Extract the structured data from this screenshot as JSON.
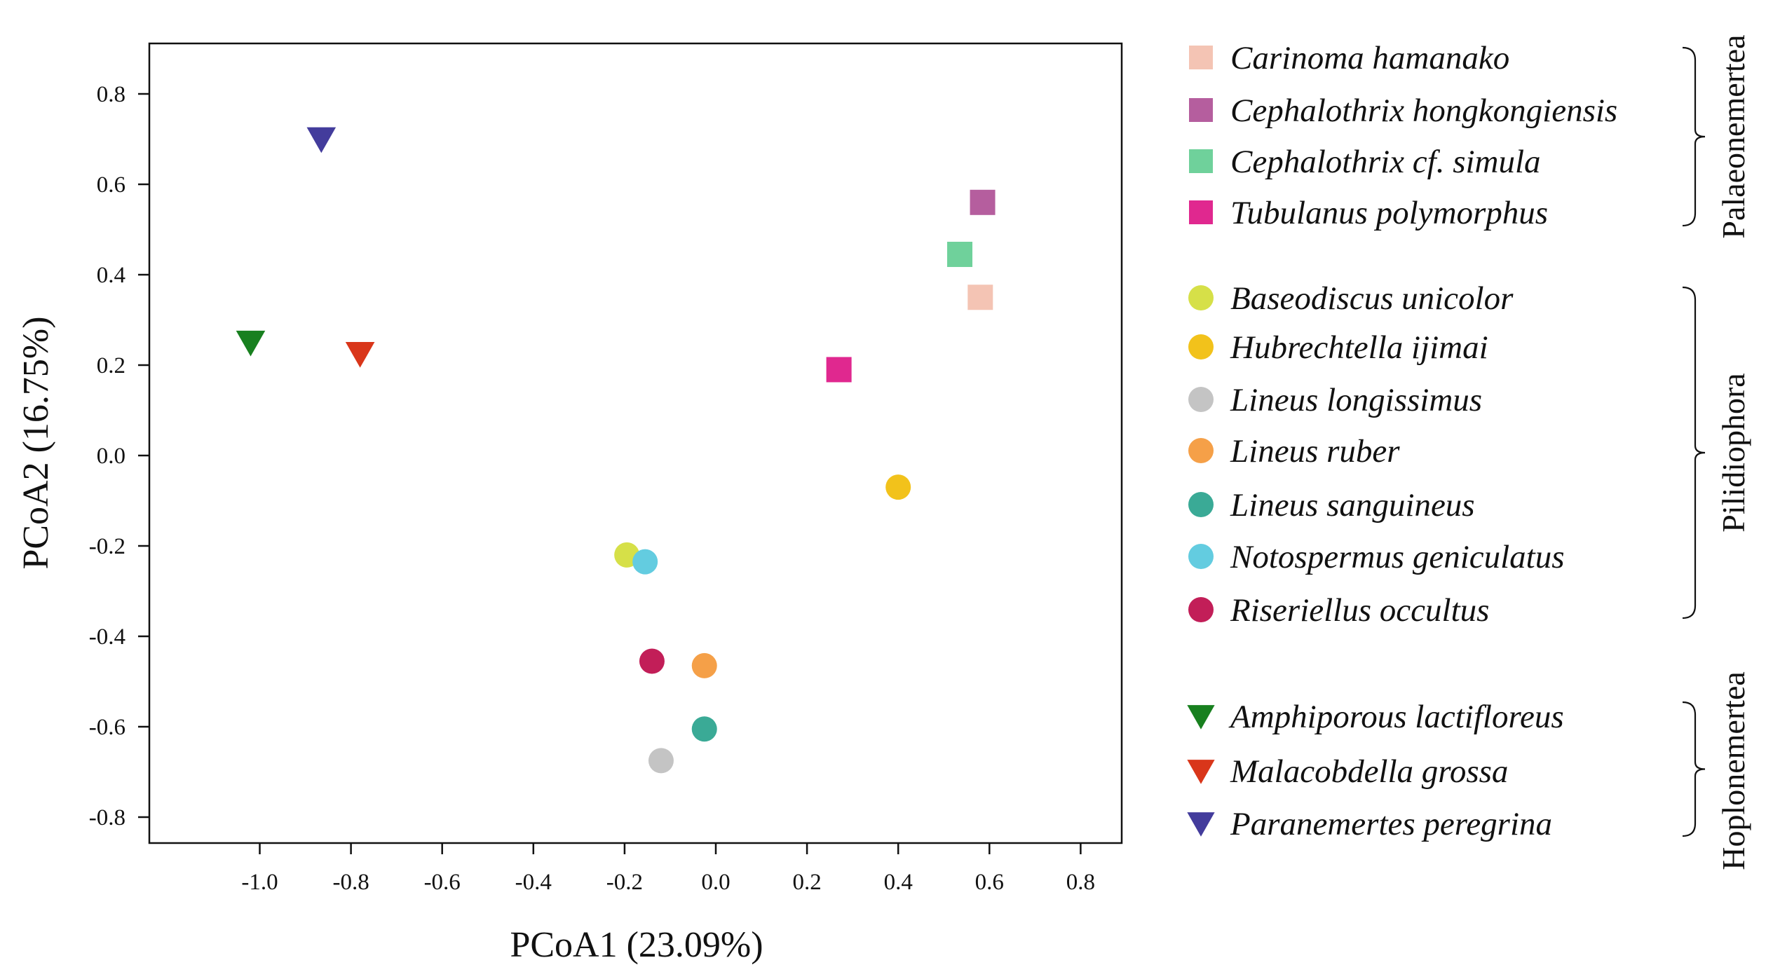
{
  "chart_data": {
    "type": "scatter",
    "title": "",
    "xlabel": "PCoA1 (23.09%)",
    "ylabel": "PCoA2 (16.75%)",
    "xlim": [
      -1.25,
      0.9
    ],
    "ylim": [
      -0.85,
      0.92
    ],
    "xticks": [
      -1.0,
      -0.8,
      -0.6,
      -0.4,
      -0.2,
      0.0,
      0.2,
      0.4,
      0.6,
      0.8
    ],
    "xtick_labels": [
      "-1.0",
      "-0.8",
      "-0.6",
      "-0.4",
      "-0.2",
      "0.0",
      "0.2",
      "0.4",
      "0.6",
      "0.8"
    ],
    "yticks": [
      0.8,
      0.6,
      0.4,
      0.2,
      0.0,
      -0.2,
      -0.4,
      -0.6,
      -0.8
    ],
    "ytick_labels": [
      "0.8",
      "0.6",
      "0.4",
      "0.2",
      "0.0",
      "-0.2",
      "-0.4",
      "-0.6",
      "-0.8"
    ],
    "grid": false,
    "legend_position": "right",
    "groups": [
      {
        "name": "Palaeonemertea",
        "marker": "square",
        "series": [
          {
            "name": "Carinoma hamanako",
            "color": "#f4c4b4",
            "x": 0.58,
            "y": 0.35
          },
          {
            "name": "Cephalothrix hongkongiensis",
            "color": "#b55e9e",
            "x": 0.585,
            "y": 0.56
          },
          {
            "name": "Cephalothrix cf. simula",
            "color": "#6fd19b",
            "x": 0.535,
            "y": 0.445
          },
          {
            "name": "Tubulanus  polymorphus",
            "color": "#e0288f",
            "x": 0.27,
            "y": 0.19
          }
        ]
      },
      {
        "name": "Pilidiophora",
        "marker": "circle",
        "series": [
          {
            "name": "Baseodiscus unicolor",
            "color": "#d6e048",
            "x": -0.195,
            "y": -0.22
          },
          {
            "name": "Hubrechtella ijimai",
            "color": "#f2c21b",
            "x": 0.4,
            "y": -0.07
          },
          {
            "name": "Lineus longissimus",
            "color": "#c4c4c4",
            "x": -0.12,
            "y": -0.675
          },
          {
            "name": "Lineus ruber",
            "color": "#f5a048",
            "x": -0.025,
            "y": -0.465
          },
          {
            "name": "Lineus sanguineus",
            "color": "#3aaa96",
            "x": -0.025,
            "y": -0.605
          },
          {
            "name": "Notospermus  geniculatus",
            "color": "#63cce0",
            "x": -0.155,
            "y": -0.235
          },
          {
            "name": "Riseriellus occultus",
            "color": "#c21e58",
            "x": -0.14,
            "y": -0.455
          }
        ]
      },
      {
        "name": "Hoplonemertea",
        "marker": "triangle-down",
        "series": [
          {
            "name": "Amphiporous  lactifloreus",
            "color": "#18801f",
            "x": -1.02,
            "y": 0.25
          },
          {
            "name": "Malacobdella grossa",
            "color": "#d9361a",
            "x": -0.78,
            "y": 0.225
          },
          {
            "name": "Paranemertes peregrina",
            "color": "#433c9c",
            "x": -0.865,
            "y": 0.7
          }
        ]
      }
    ]
  }
}
